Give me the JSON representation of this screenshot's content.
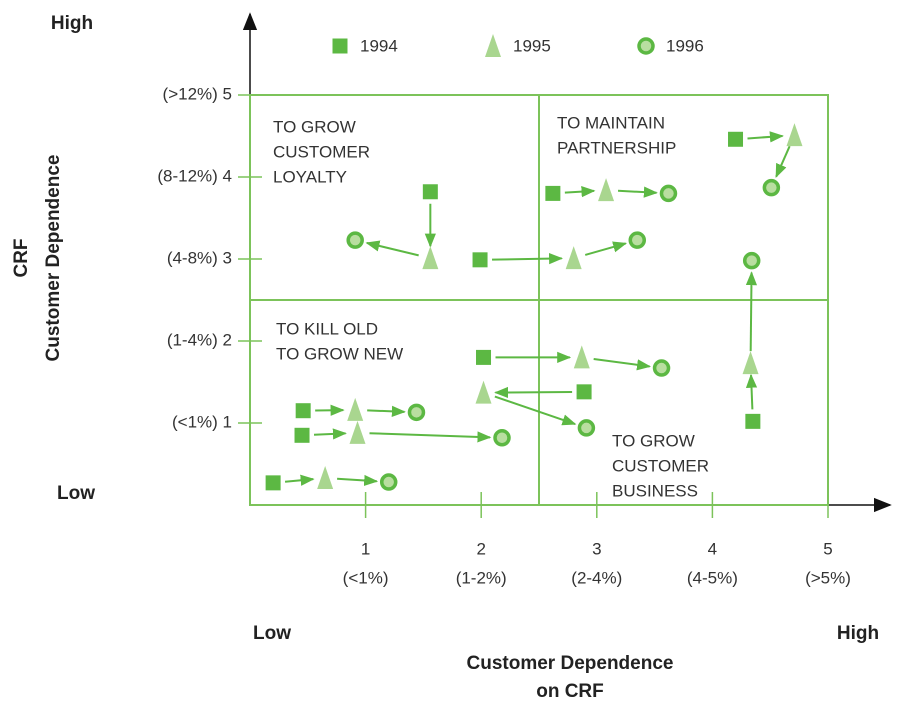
{
  "chart_data": {
    "type": "scatter",
    "y_label": [
      "CRF",
      "Customer Dependence"
    ],
    "x_label": [
      "Customer Dependence",
      "on CRF"
    ],
    "y_low": "Low",
    "y_high": "High",
    "x_low": "Low",
    "x_high": "High",
    "xlim": [
      0,
      5
    ],
    "ylim": [
      0,
      5
    ],
    "xticks": [
      1,
      2,
      3,
      4,
      5
    ],
    "xtick_sublabels": [
      "(<1%)",
      "(1-2%)",
      "(2-4%)",
      "(4-5%)",
      "(>5%)"
    ],
    "yticks": [
      {
        "value": 1,
        "label": "(<1%) 1"
      },
      {
        "value": 2,
        "label": "(1-4%) 2"
      },
      {
        "value": 3,
        "label": "(4-8%) 3"
      },
      {
        "value": 4,
        "label": "(8-12%) 4"
      },
      {
        "value": 5,
        "label": "(>12%) 5"
      }
    ],
    "dividers": {
      "x": 2.5,
      "y": 2.5
    },
    "quadrants": [
      [
        "TO GROW",
        "CUSTOMER",
        "LOYALTY"
      ],
      [
        "TO MAINTAIN",
        "PARTNERSHIP"
      ],
      [
        "TO KILL OLD",
        "TO GROW NEW"
      ],
      [
        "TO GROW",
        "CUSTOMER",
        "BUSINESS"
      ]
    ],
    "series": [
      {
        "name": "1994",
        "marker": "square",
        "color": "#5cb843",
        "x": [
          1.56,
          1.99,
          2.62,
          4.2,
          4.35,
          2.02,
          2.89,
          0.46,
          0.45,
          0.2
        ],
        "y": [
          3.82,
          2.99,
          3.8,
          4.46,
          1.02,
          1.8,
          1.38,
          1.15,
          0.85,
          0.27
        ]
      },
      {
        "name": "1995",
        "marker": "triangle",
        "color": "#a9d68f",
        "x": [
          1.56,
          2.8,
          3.08,
          4.71,
          4.33,
          2.87,
          2.02,
          0.91,
          0.93,
          0.65
        ],
        "y": [
          3.01,
          3.01,
          3.84,
          4.51,
          1.73,
          1.8,
          1.37,
          1.16,
          0.88,
          0.33
        ]
      },
      {
        "name": "1996",
        "marker": "circle",
        "color": "#5cb843",
        "x": [
          0.91,
          3.35,
          3.62,
          4.51,
          4.34,
          3.56,
          2.91,
          1.44,
          2.18,
          1.2
        ],
        "y": [
          3.23,
          3.23,
          3.8,
          3.87,
          2.98,
          1.67,
          0.94,
          1.13,
          0.82,
          0.28
        ]
      }
    ]
  }
}
